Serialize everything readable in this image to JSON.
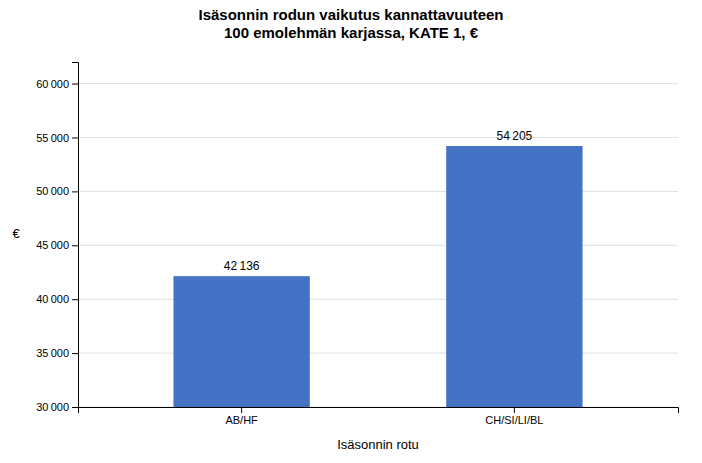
{
  "chart_data": {
    "type": "bar",
    "title": "Isäsonnin rodun vaikutus kannattavuuteen\n100 emolehmän karjassa, KATE 1, €",
    "categories": [
      "AB/HF",
      "CH/SI/LI/BL"
    ],
    "values": [
      42136,
      54205
    ],
    "value_labels": [
      "42 136",
      "54 205"
    ],
    "data_labels": true,
    "color": "#4472C4",
    "xlabel": "Isäsonnin rotu",
    "ylabel": "€",
    "ylim": [
      30000,
      62000
    ],
    "yticks": [
      {
        "value": 30000,
        "label": "30 000"
      },
      {
        "value": 35000,
        "label": "35 000"
      },
      {
        "value": 40000,
        "label": "40 000"
      },
      {
        "value": 45000,
        "label": "45 000"
      },
      {
        "value": 50000,
        "label": "50 000"
      },
      {
        "value": 55000,
        "label": "55 000"
      },
      {
        "value": 60000,
        "label": "60 000"
      }
    ],
    "grid": true
  }
}
